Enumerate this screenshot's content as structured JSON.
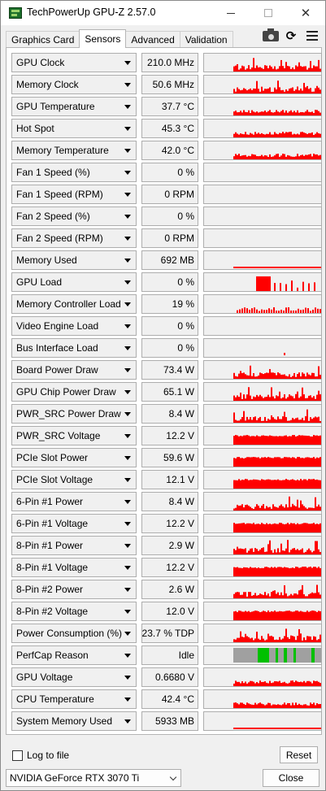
{
  "window": {
    "title": "TechPowerUp GPU-Z 2.57.0",
    "title_icon": "gpu-z-app-icon",
    "controls": [
      "minimize",
      "maximize",
      "close"
    ]
  },
  "tabs": [
    {
      "label": "Graphics Card",
      "active": false
    },
    {
      "label": "Sensors",
      "active": true
    },
    {
      "label": "Advanced",
      "active": false
    },
    {
      "label": "Validation",
      "active": false
    }
  ],
  "toolbar_icons": [
    "camera-icon",
    "refresh-icon",
    "menu-icon"
  ],
  "colors": {
    "graph_fill": "#ff0000",
    "perfcap_idle": "#a0a0a0",
    "perfcap_other": "#00c000",
    "graph_bg": "#f0f0f0"
  },
  "sensors": [
    {
      "name": "GPU Clock",
      "value": "210.0 MHz"
    },
    {
      "name": "Memory Clock",
      "value": "50.6 MHz"
    },
    {
      "name": "GPU Temperature",
      "value": "37.7 °C"
    },
    {
      "name": "Hot Spot",
      "value": "45.3 °C"
    },
    {
      "name": "Memory Temperature",
      "value": "42.0 °C"
    },
    {
      "name": "Fan 1 Speed (%)",
      "value": "0 %"
    },
    {
      "name": "Fan 1 Speed (RPM)",
      "value": "0 RPM"
    },
    {
      "name": "Fan 2 Speed (%)",
      "value": "0 %"
    },
    {
      "name": "Fan 2 Speed (RPM)",
      "value": "0 RPM"
    },
    {
      "name": "Memory Used",
      "value": "692 MB"
    },
    {
      "name": "GPU Load",
      "value": "0 %"
    },
    {
      "name": "Memory Controller Load",
      "value": "19 %"
    },
    {
      "name": "Video Engine Load",
      "value": "0 %"
    },
    {
      "name": "Bus Interface Load",
      "value": "0 %"
    },
    {
      "name": "Board Power Draw",
      "value": "73.4 W"
    },
    {
      "name": "GPU Chip Power Draw",
      "value": "65.1 W"
    },
    {
      "name": "PWR_SRC Power Draw",
      "value": "8.4 W"
    },
    {
      "name": "PWR_SRC Voltage",
      "value": "12.2 V"
    },
    {
      "name": "PCIe Slot Power",
      "value": "59.6 W"
    },
    {
      "name": "PCIe Slot Voltage",
      "value": "12.1 V"
    },
    {
      "name": "6-Pin #1 Power",
      "value": "8.4 W"
    },
    {
      "name": "6-Pin #1 Voltage",
      "value": "12.2 V"
    },
    {
      "name": "8-Pin #1 Power",
      "value": "2.9 W"
    },
    {
      "name": "8-Pin #1 Voltage",
      "value": "12.2 V"
    },
    {
      "name": "8-Pin #2 Power",
      "value": "2.6 W"
    },
    {
      "name": "8-Pin #2 Voltage",
      "value": "12.0 V"
    },
    {
      "name": "Power Consumption (%)",
      "value": "23.7 % TDP"
    },
    {
      "name": "PerfCap Reason",
      "value": "Idle"
    },
    {
      "name": "GPU Voltage",
      "value": "0.6680 V"
    },
    {
      "name": "CPU Temperature",
      "value": "42.4 °C"
    },
    {
      "name": "System Memory Used",
      "value": "5933 MB"
    }
  ],
  "footer": {
    "log_to_file_label": "Log to file",
    "log_to_file_checked": false,
    "reset_label": "Reset",
    "gpu_selected": "NVIDIA GeForce RTX 3070 Ti",
    "close_label": "Close"
  }
}
